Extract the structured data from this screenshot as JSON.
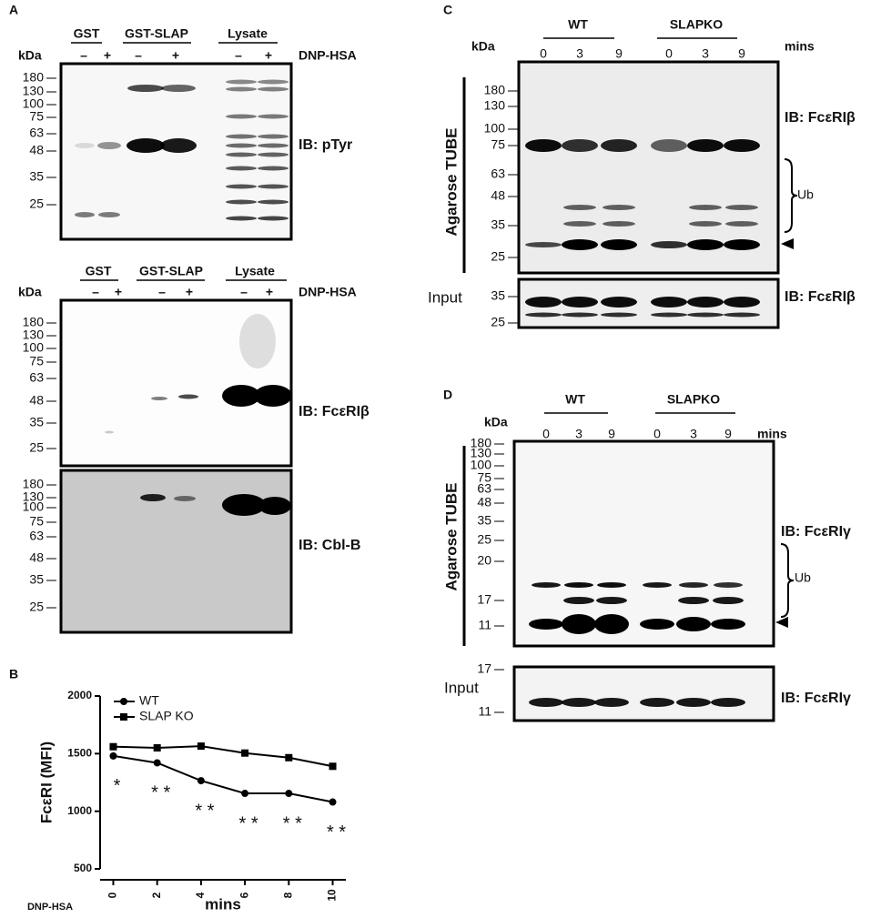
{
  "panels": {
    "A": {
      "label": "A",
      "top": {
        "groups": [
          "GST",
          "GST-SLAP",
          "Lysate"
        ],
        "kda": "kDa",
        "treatments": [
          "–",
          "+",
          "–",
          "+",
          "–",
          "+"
        ],
        "treatment_label": "DNP-HSA",
        "markers": [
          180,
          130,
          100,
          75,
          63,
          48,
          35,
          25
        ],
        "antibody": "IB: pTyr"
      },
      "middle": {
        "groups": [
          "GST",
          "GST-SLAP",
          "Lysate"
        ],
        "kda": "kDa",
        "treatments": [
          "–",
          "+",
          "–",
          "+",
          "–",
          "+"
        ],
        "treatment_label": "DNP-HSA",
        "markers": [
          180,
          130,
          100,
          75,
          63,
          48,
          35,
          25
        ],
        "antibody": "IB: FcεRIβ"
      },
      "bottom": {
        "markers": [
          180,
          130,
          100,
          75,
          63,
          48,
          35,
          25
        ],
        "antibody": "IB: Cbl-B"
      }
    },
    "B": {
      "label": "B"
    },
    "C": {
      "label": "C",
      "kda": "kDa",
      "groups": [
        "WT",
        "SLAPKO"
      ],
      "time_label": "mins",
      "times": [
        "0",
        "3",
        "9",
        "0",
        "3",
        "9"
      ],
      "markers": [
        180,
        130,
        100,
        75,
        63,
        48,
        35,
        25
      ],
      "antibody": "IB: FcεRIβ",
      "bracket_label": "Ub",
      "side_label": "Agarose TUBE",
      "input": {
        "label": "Input",
        "markers": [
          35,
          25
        ],
        "antibody": "IB: FcεRIβ"
      }
    },
    "D": {
      "label": "D",
      "kda": "kDa",
      "groups": [
        "WT",
        "SLAPKO"
      ],
      "time_label": "mins",
      "times": [
        "0",
        "3",
        "9",
        "0",
        "3",
        "9"
      ],
      "markers": [
        180,
        130,
        100,
        75,
        63,
        48,
        35,
        25,
        20,
        17,
        11
      ],
      "antibody": "IB: FcεRIγ",
      "bracket_label": "Ub",
      "side_label": "Agarose TUBE",
      "input": {
        "label": "Input",
        "markers": [
          17,
          11
        ],
        "antibody": "IB: FcεRIγ"
      }
    }
  },
  "chart_data": {
    "type": "line",
    "y_label": "FcεRI (MFI)",
    "x_label": "mins",
    "x_group_label": "DNP-HSA",
    "x": [
      0,
      2,
      4,
      6,
      8,
      10
    ],
    "series": [
      {
        "name": "WT",
        "color": "#000000",
        "marker": "circle",
        "values": [
          1480,
          1420,
          1265,
          1155,
          1155,
          1080
        ]
      },
      {
        "name": "SLAP KO",
        "color": "#000000",
        "marker": "square",
        "values": [
          1560,
          1550,
          1565,
          1505,
          1465,
          1390
        ]
      }
    ],
    "xlim": [
      -0.6,
      10.6
    ],
    "ylim": [
      500,
      2000
    ],
    "xticks": [
      0,
      2,
      4,
      6,
      8,
      10
    ],
    "yticks": [
      500,
      1000,
      1500,
      2000
    ],
    "significance": [
      "*",
      "* *",
      "* *",
      "* *",
      "* *",
      "* *"
    ]
  }
}
